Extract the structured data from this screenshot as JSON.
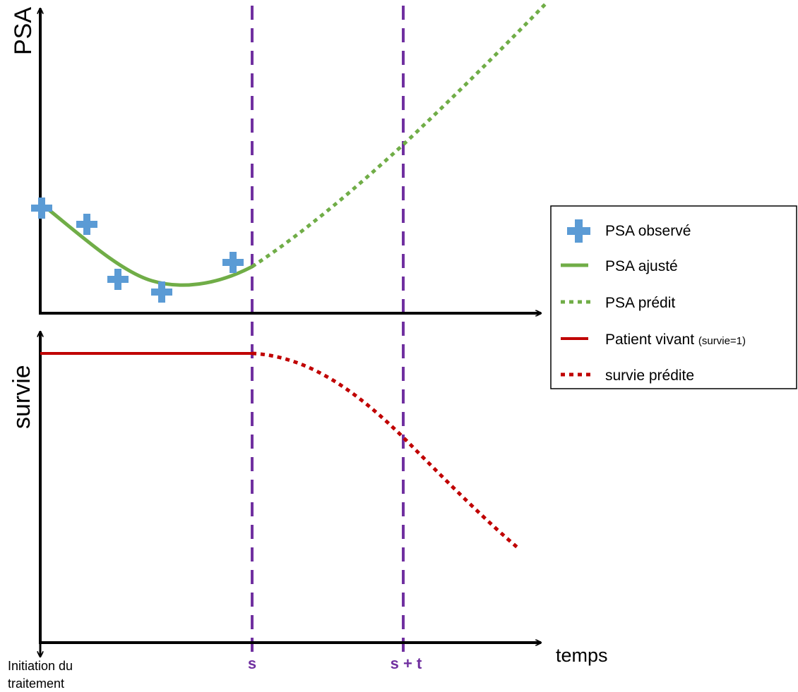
{
  "labels": {
    "psa_axis": "PSA",
    "survie_axis": "survie",
    "time_axis": "temps",
    "origin_line1": "Initiation du",
    "origin_line2": "traitement",
    "s_marker": "s",
    "st_marker": "s + t"
  },
  "legend": {
    "items": [
      {
        "label": "PSA observé",
        "suffix": ""
      },
      {
        "label": "PSA ajusté",
        "suffix": ""
      },
      {
        "label": "PSA prédit",
        "suffix": ""
      },
      {
        "label": "Patient vivant ",
        "suffix": "(survie=1)"
      },
      {
        "label": "survie prédite",
        "suffix": ""
      }
    ]
  },
  "colors": {
    "axis": "#000000",
    "observed": "#5b9bd5",
    "fitted": "#70ad47",
    "survival": "#c00000",
    "marker": "#7030a0"
  },
  "icons": {
    "observed": "plus-marker-icon",
    "fitted": "solid-line-icon",
    "predicted": "dotted-line-icon"
  }
}
